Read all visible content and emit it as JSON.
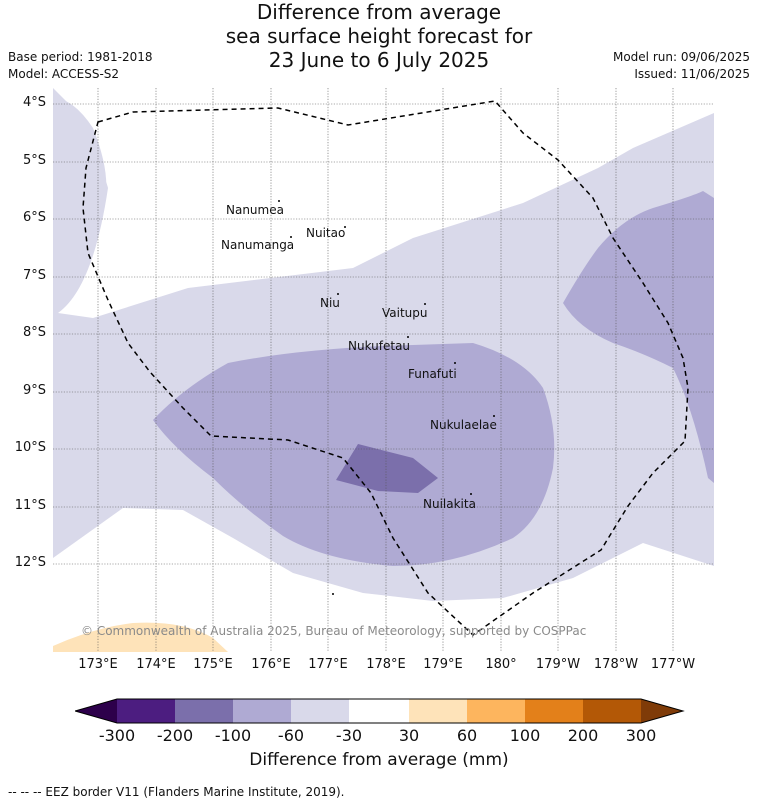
{
  "title": {
    "line1": "Difference from average",
    "line2": "sea surface height forecast for",
    "line3": "23 June to 6 July 2025"
  },
  "meta": {
    "base_period": "Base period: 1981-2018",
    "model": "Model: ACCESS-S2",
    "model_run": "Model run: 09/06/2025",
    "issued": "Issued: 11/06/2025"
  },
  "map": {
    "lat_labels": [
      "4°S",
      "5°S",
      "6°S",
      "7°S",
      "8°S",
      "9°S",
      "10°S",
      "11°S",
      "12°S"
    ],
    "lon_labels": [
      "173°E",
      "174°E",
      "175°E",
      "176°E",
      "177°E",
      "178°E",
      "179°E",
      "180°",
      "179°W",
      "178°W",
      "177°W"
    ],
    "places": [
      "Nanumea",
      "Nuitao",
      "Nanumanga",
      "Niu",
      "Vaitupu",
      "Nukufetau",
      "Funafuti",
      "Nukulaelae",
      "Nuilakita"
    ],
    "copyright": "© Commonwealth of Australia 2025, Bureau of Meteorology, supported by COSPPac",
    "colors": {
      "band_-300_-200": "#4c1d80",
      "band_-200_-100": "#7b6fab",
      "band_-100_-60": "#afaad3",
      "band_-60_-30": "#d9d9ea",
      "band_-30_30": "#ffffff",
      "band_30_60": "#fee3b9",
      "band_60_100": "#fdb55e",
      "band_100_200": "#e3801a",
      "band_200_300": "#b35806",
      "over_300": "#7f3b08",
      "under_-300": "#2d004b"
    }
  },
  "colorbar": {
    "ticks": [
      "-300",
      "-200",
      "-100",
      "-60",
      "-30",
      "30",
      "60",
      "100",
      "200",
      "300"
    ],
    "title": "Difference from average (mm)"
  },
  "legend_note": "--  --  -- EEZ border V11 (Flanders Marine Institute, 2019)."
}
